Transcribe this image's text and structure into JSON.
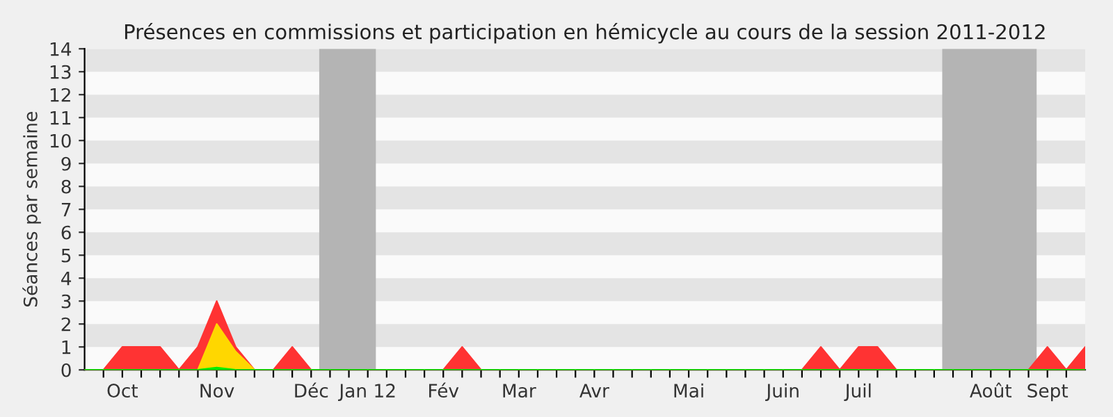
{
  "chart_data": {
    "type": "area",
    "title": "Présences en commissions et participation en hémicycle au cours de la session 2011-2012",
    "ylabel": "Séances par semaine",
    "x": [
      "2011-09-26",
      "2011-10-03",
      "2011-10-10",
      "2011-10-17",
      "2011-10-24",
      "2011-10-31",
      "2011-11-07",
      "2011-11-14",
      "2011-11-21",
      "2011-11-28",
      "2011-12-05",
      "2011-12-12",
      "2011-12-19",
      "2011-12-26",
      "2012-01-02",
      "2012-01-09",
      "2012-01-16",
      "2012-01-23",
      "2012-01-30",
      "2012-02-06",
      "2012-02-13",
      "2012-02-20",
      "2012-02-27",
      "2012-03-05",
      "2012-03-12",
      "2012-03-19",
      "2012-03-26",
      "2012-04-02",
      "2012-04-09",
      "2012-04-16",
      "2012-04-23",
      "2012-04-30",
      "2012-05-07",
      "2012-05-14",
      "2012-05-21",
      "2012-05-28",
      "2012-06-04",
      "2012-06-11",
      "2012-06-18",
      "2012-06-25",
      "2012-07-02",
      "2012-07-09",
      "2012-07-16",
      "2012-07-23",
      "2012-07-30",
      "2012-08-06",
      "2012-08-13",
      "2012-08-20",
      "2012-08-27",
      "2012-09-03",
      "2012-09-10",
      "2012-09-17",
      "2012-09-24",
      "2012-10-01"
    ],
    "series": [
      {
        "color": "#ff3333",
        "values": [
          0,
          0,
          1,
          1,
          1,
          0,
          1,
          3,
          1,
          0,
          0,
          1,
          0,
          0,
          0,
          0,
          0,
          0,
          0,
          0,
          1,
          0,
          0,
          0,
          0,
          0,
          0,
          0,
          0,
          0,
          0,
          0,
          0,
          0,
          0,
          0,
          0,
          0,
          0,
          1,
          0,
          1,
          1,
          0,
          0,
          0,
          0,
          0,
          0,
          0,
          0,
          1,
          0,
          1
        ]
      },
      {
        "color": "#ffd700",
        "values": [
          0,
          0,
          0,
          0,
          0,
          0,
          0,
          2,
          0.8,
          0,
          0,
          0,
          0,
          0,
          0,
          0,
          0,
          0,
          0,
          0,
          0,
          0,
          0,
          0,
          0,
          0,
          0,
          0,
          0,
          0,
          0,
          0,
          0,
          0,
          0,
          0,
          0,
          0,
          0,
          0,
          0,
          0,
          0,
          0,
          0,
          0,
          0,
          0,
          0,
          0,
          0,
          0,
          0,
          0
        ]
      },
      {
        "color": "#00ee00",
        "values": [
          0,
          0,
          0,
          0,
          0,
          0,
          0,
          0.1,
          0,
          0,
          0,
          0,
          0,
          0,
          0,
          0,
          0,
          0,
          0,
          0,
          0,
          0,
          0,
          0,
          0,
          0,
          0,
          0,
          0,
          0,
          0,
          0,
          0,
          0,
          0,
          0,
          0,
          0,
          0,
          0,
          0,
          0,
          0,
          0,
          0,
          0,
          0,
          0,
          0,
          0,
          0,
          0,
          0,
          0
        ]
      }
    ],
    "bands": [
      {
        "axis": "x",
        "from": "2011-12-22",
        "to": "2012-01-12",
        "color": "#b4b4b4"
      },
      {
        "axis": "x",
        "from": "2012-08-09",
        "to": "2012-09-13",
        "color": "#b4b4b4"
      }
    ],
    "xlim": [
      "2011-09-26",
      "2012-10-01"
    ],
    "xticks": [
      {
        "value": "2011-10-03",
        "label": null
      },
      {
        "value": "2011-10-10",
        "label": "Oct"
      },
      {
        "value": "2011-10-17",
        "label": null
      },
      {
        "value": "2011-10-24",
        "label": null
      },
      {
        "value": "2011-10-31",
        "label": null
      },
      {
        "value": "2011-11-07",
        "label": null
      },
      {
        "value": "2011-11-14",
        "label": "Nov"
      },
      {
        "value": "2011-11-21",
        "label": null
      },
      {
        "value": "2011-11-28",
        "label": null
      },
      {
        "value": "2011-12-05",
        "label": null
      },
      {
        "value": "2011-12-12",
        "label": null
      },
      {
        "value": "2011-12-19",
        "label": "Déc"
      },
      {
        "value": "2011-12-26",
        "label": null
      },
      {
        "value": "2012-01-02",
        "label": null
      },
      {
        "value": "2012-01-09",
        "label": "Jan 12"
      },
      {
        "value": "2012-01-16",
        "label": null
      },
      {
        "value": "2012-01-23",
        "label": null
      },
      {
        "value": "2012-01-30",
        "label": null
      },
      {
        "value": "2012-02-06",
        "label": "Fév"
      },
      {
        "value": "2012-02-13",
        "label": null
      },
      {
        "value": "2012-02-20",
        "label": null
      },
      {
        "value": "2012-02-27",
        "label": null
      },
      {
        "value": "2012-03-05",
        "label": "Mar"
      },
      {
        "value": "2012-03-12",
        "label": null
      },
      {
        "value": "2012-03-19",
        "label": null
      },
      {
        "value": "2012-03-26",
        "label": null
      },
      {
        "value": "2012-04-02",
        "label": "Avr"
      },
      {
        "value": "2012-04-09",
        "label": null
      },
      {
        "value": "2012-04-16",
        "label": null
      },
      {
        "value": "2012-04-23",
        "label": null
      },
      {
        "value": "2012-04-30",
        "label": null
      },
      {
        "value": "2012-05-07",
        "label": "Mai"
      },
      {
        "value": "2012-05-14",
        "label": null
      },
      {
        "value": "2012-05-21",
        "label": null
      },
      {
        "value": "2012-05-28",
        "label": null
      },
      {
        "value": "2012-06-04",
        "label": null
      },
      {
        "value": "2012-06-11",
        "label": "Juin"
      },
      {
        "value": "2012-06-18",
        "label": null
      },
      {
        "value": "2012-06-25",
        "label": null
      },
      {
        "value": "2012-07-02",
        "label": null
      },
      {
        "value": "2012-07-09",
        "label": "Juil"
      },
      {
        "value": "2012-07-16",
        "label": null
      },
      {
        "value": "2012-07-23",
        "label": null
      },
      {
        "value": "2012-07-30",
        "label": null
      },
      {
        "value": "2012-08-06",
        "label": null
      },
      {
        "value": "2012-08-13",
        "label": null
      },
      {
        "value": "2012-08-20",
        "label": null
      },
      {
        "value": "2012-08-27",
        "label": "Août"
      },
      {
        "value": "2012-09-03",
        "label": null
      },
      {
        "value": "2012-09-10",
        "label": null
      },
      {
        "value": "2012-09-17",
        "label": "Sept"
      },
      {
        "value": "2012-09-24",
        "label": null
      }
    ],
    "ylim": [
      0,
      14
    ],
    "yticks": [
      0,
      1,
      2,
      3,
      4,
      5,
      6,
      7,
      8,
      9,
      10,
      11,
      12,
      13,
      14
    ]
  }
}
